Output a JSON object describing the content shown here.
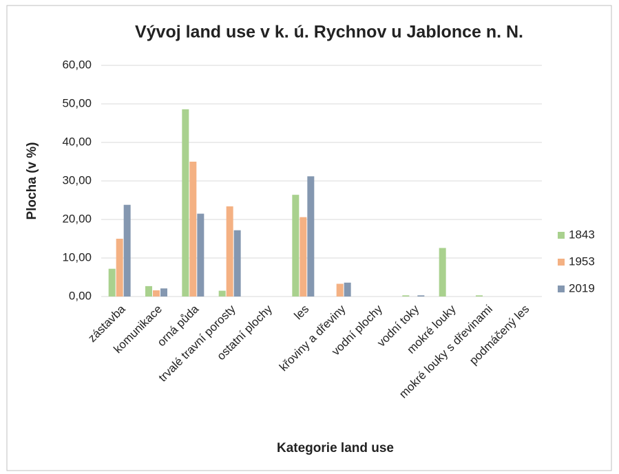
{
  "chart_data": {
    "type": "bar",
    "title": "Vývoj land use v k. ú. Rychnov u Jablonce n. N.",
    "x_label": "Kategorie land use",
    "y_label": "Plocha (v %)",
    "categories": [
      "zástavba",
      "komunikace",
      "orná půda",
      "trvalé travní porosty",
      "ostatní plochy",
      "les",
      "křoviny a dřeviny",
      "vodní plochy",
      "vodní toky",
      "mokré louky",
      "mokré louky s dřevinami",
      "podmáčený les"
    ],
    "series": [
      {
        "name": "1843",
        "color": "#a9d18e",
        "values": [
          7.2,
          2.7,
          48.6,
          1.5,
          0,
          26.4,
          0,
          0,
          0.3,
          12.6,
          0.3,
          0
        ]
      },
      {
        "name": "1953",
        "color": "#f4b183",
        "values": [
          15.0,
          1.6,
          35.0,
          23.4,
          0,
          20.6,
          3.3,
          0,
          0,
          0,
          0,
          0
        ]
      },
      {
        "name": "2019",
        "color": "#8497b0",
        "values": [
          23.8,
          2.1,
          21.5,
          17.2,
          0,
          31.2,
          3.6,
          0,
          0.3,
          0,
          0,
          0
        ]
      }
    ],
    "ylim": [
      0,
      60
    ],
    "yticks": [
      {
        "value": 0,
        "label": "0,00"
      },
      {
        "value": 10,
        "label": "10,00"
      },
      {
        "value": 20,
        "label": "20,00"
      },
      {
        "value": 30,
        "label": "30,00"
      },
      {
        "value": 40,
        "label": "40,00"
      },
      {
        "value": 50,
        "label": "50,00"
      },
      {
        "value": 60,
        "label": "60,00"
      }
    ],
    "grid": true,
    "legend": "right"
  }
}
